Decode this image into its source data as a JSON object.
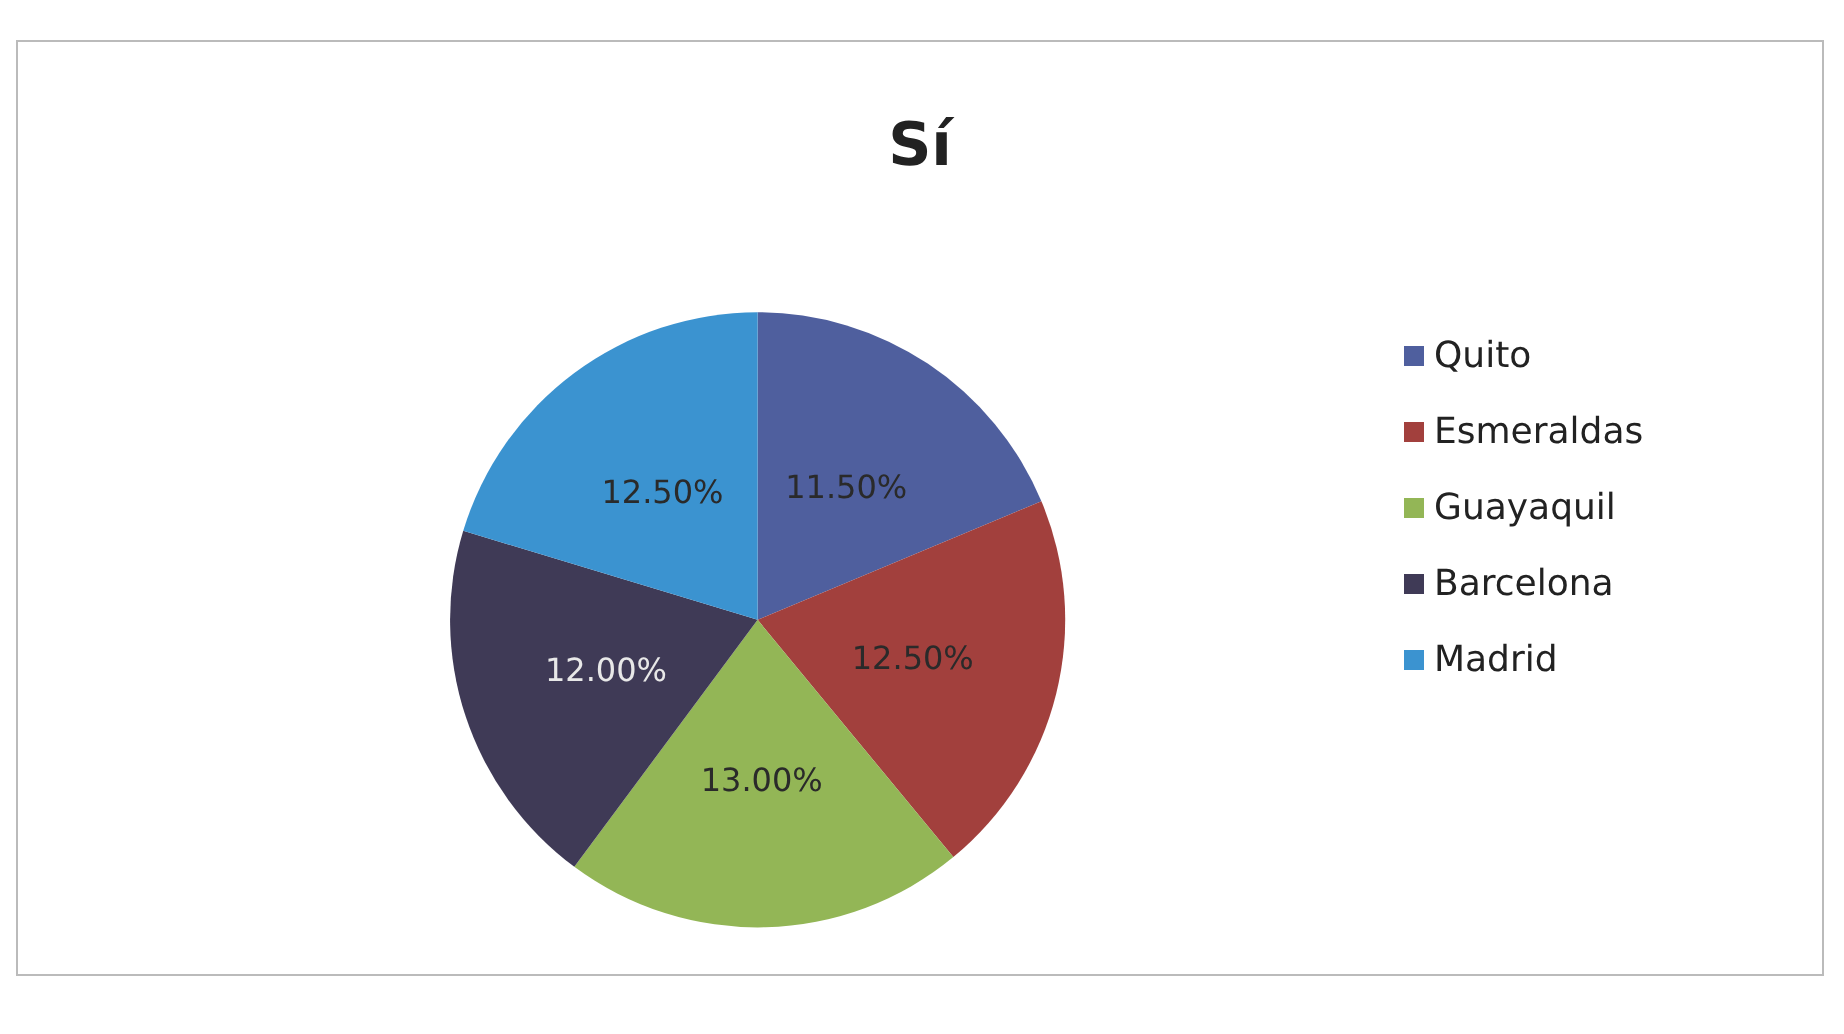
{
  "chart_data": {
    "type": "pie",
    "title": "Sí",
    "categories": [
      "Quito",
      "Esmeraldas",
      "Guayaquil",
      "Barcelona",
      "Madrid"
    ],
    "values": [
      11.5,
      12.5,
      13,
      12,
      12.5
    ],
    "value_labels": [
      "11.50%",
      "12.50%",
      "13.00%",
      "12.00%",
      "12.50%"
    ],
    "colors": [
      "#4f5f9e",
      "#a2403d",
      "#93b656",
      "#3f3a56",
      "#3b93d0"
    ],
    "legend": "right"
  }
}
